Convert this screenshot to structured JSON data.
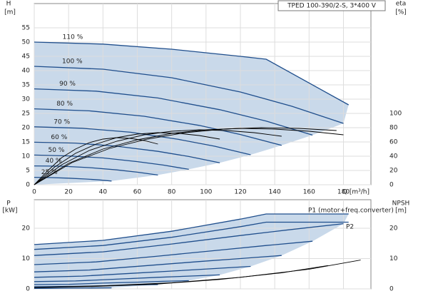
{
  "chart_data": [
    {
      "type": "line",
      "title": "TPED 100-390/2-S, 3*400 V",
      "ylabel": "H",
      "yunit": "[m]",
      "y2label": "eta",
      "y2unit": "[%]",
      "xlabel": "Q [m³/h]",
      "xlim": [
        0,
        196
      ],
      "xticks": [
        0,
        20,
        40,
        60,
        80,
        100,
        120,
        140,
        160,
        180
      ],
      "ylim": [
        0,
        63.5
      ],
      "yticks": [
        0,
        5,
        10,
        15,
        20,
        25,
        30,
        35,
        40,
        45,
        50,
        55
      ],
      "y2lim": [
        0,
        254
      ],
      "y2ticks": [
        0,
        20,
        40,
        60,
        80,
        100
      ],
      "grid": true,
      "series": [
        {
          "name": "110 %",
          "color": "#1f4e8c",
          "fill": "#c9d9ea",
          "x": [
            0,
            40,
            80,
            120,
            135,
            183
          ],
          "values": [
            50,
            49.3,
            47.5,
            45,
            44,
            28
          ]
        },
        {
          "name": "100 %",
          "color": "#1f4e8c",
          "fill": "#c9d9ea",
          "x": [
            0,
            40,
            80,
            120,
            150,
            180
          ],
          "values": [
            41.5,
            40.5,
            37.5,
            32.5,
            27.5,
            21.5
          ]
        },
        {
          "name": "90 %",
          "color": "#1f4e8c",
          "fill": "#c9d9ea",
          "x": [
            0,
            36,
            72,
            108,
            135,
            162
          ],
          "values": [
            33.6,
            32.8,
            30.4,
            26.3,
            22.3,
            17.4
          ]
        },
        {
          "name": "80 %",
          "color": "#1f4e8c",
          "fill": "#c9d9ea",
          "x": [
            0,
            32,
            64,
            96,
            120,
            144
          ],
          "values": [
            26.6,
            25.9,
            24,
            20.8,
            17.6,
            13.8
          ]
        },
        {
          "name": "70 %",
          "color": "#1f4e8c",
          "fill": "#c9d9ea",
          "x": [
            0,
            28,
            56,
            84,
            105,
            126
          ],
          "values": [
            20.3,
            19.8,
            18.4,
            15.9,
            13.5,
            10.5
          ]
        },
        {
          "name": "60 %",
          "color": "#1f4e8c",
          "fill": "#c9d9ea",
          "x": [
            0,
            24,
            48,
            72,
            90,
            108
          ],
          "values": [
            14.9,
            14.6,
            13.5,
            11.7,
            9.9,
            7.7
          ]
        },
        {
          "name": "50 %",
          "color": "#1f4e8c",
          "fill": "#c9d9ea",
          "x": [
            0,
            20,
            40,
            60,
            75,
            90
          ],
          "values": [
            10.4,
            10.1,
            9.4,
            8.1,
            6.9,
            5.4
          ]
        },
        {
          "name": "40 %",
          "color": "#1f4e8c",
          "fill": "#c9d9ea",
          "x": [
            0,
            16,
            32,
            48,
            60,
            72
          ],
          "values": [
            6.6,
            6.5,
            6,
            5.2,
            4.4,
            3.4
          ]
        },
        {
          "name": "25 %",
          "color": "#1f4e8c",
          "fill": "#c9d9ea",
          "x": [
            0,
            10,
            20,
            30,
            37.5,
            45
          ],
          "values": [
            2.6,
            2.5,
            2.3,
            2,
            1.7,
            1.3
          ]
        },
        {
          "axis": "y2",
          "color": "#000000",
          "x": [
            0,
            22,
            44,
            66,
            88,
            110,
            132,
            154,
            176
          ],
          "values": [
            0,
            31,
            51,
            64,
            73,
            78,
            80,
            79,
            76
          ]
        },
        {
          "axis": "y2",
          "color": "#000000",
          "x": [
            0,
            20,
            40,
            60,
            80,
            100,
            120,
            140,
            160,
            180
          ],
          "values": [
            0,
            30,
            50,
            63,
            72,
            77,
            79,
            78,
            75,
            70
          ]
        },
        {
          "axis": "y2",
          "color": "#000000",
          "x": [
            0,
            16,
            32,
            48,
            64,
            80,
            96,
            112,
            128,
            144
          ],
          "values": [
            0,
            28,
            48,
            61,
            70,
            75,
            77,
            76,
            73,
            68
          ]
        },
        {
          "axis": "y2",
          "color": "#000000",
          "x": [
            0,
            12,
            24,
            36,
            48,
            60,
            72,
            84,
            96,
            108
          ],
          "values": [
            0,
            25,
            44,
            57,
            66,
            71,
            73,
            72,
            69,
            64
          ]
        },
        {
          "axis": "y2",
          "color": "#000000",
          "x": [
            0,
            8,
            16,
            24,
            32,
            40,
            48,
            56,
            64,
            72
          ],
          "values": [
            0,
            20,
            38,
            50,
            59,
            64,
            66,
            65,
            62,
            57
          ]
        }
      ]
    },
    {
      "type": "line",
      "ylabel": "P",
      "yunit": "[kW]",
      "y2label": "NPSH",
      "y2unit": "[m]",
      "annotations": [
        "P1 (motor+freq.converter)",
        "P2"
      ],
      "xlim": [
        0,
        196
      ],
      "xticks": [
        0,
        20,
        40,
        60,
        80,
        100,
        120,
        140,
        160,
        180
      ],
      "ylim": [
        0,
        29.4
      ],
      "yticks": [
        0,
        10,
        20
      ],
      "y2lim": [
        0,
        29.4
      ],
      "y2ticks": [
        0,
        10,
        20
      ],
      "grid": true,
      "series": [
        {
          "color": "#1f4e8c",
          "fill": "#c9d9ea",
          "x": [
            0,
            40,
            80,
            120,
            135,
            183
          ],
          "values": [
            14.6,
            16,
            19,
            23,
            24.7,
            24.7
          ]
        },
        {
          "color": "#1f4e8c",
          "fill": "#c9d9ea",
          "x": [
            0,
            40,
            80,
            120,
            150,
            180
          ],
          "values": [
            11,
            12.2,
            14.8,
            17.6,
            19.6,
            21.5
          ]
        },
        {
          "color": "#1f4e8c",
          "fill": "#c9d9ea",
          "x": [
            0,
            36,
            72,
            108,
            135,
            162
          ],
          "values": [
            8,
            8.9,
            10.8,
            12.8,
            14.3,
            15.7
          ]
        },
        {
          "color": "#1f4e8c",
          "fill": "#c9d9ea",
          "x": [
            0,
            32,
            64,
            96,
            120,
            144
          ],
          "values": [
            5.6,
            6.2,
            7.6,
            9,
            10,
            11
          ]
        },
        {
          "color": "#1f4e8c",
          "fill": "#c9d9ea",
          "x": [
            0,
            28,
            56,
            84,
            105,
            126
          ],
          "values": [
            3.8,
            4.2,
            5.1,
            6,
            6.7,
            7.4
          ]
        },
        {
          "color": "#1f4e8c",
          "fill": "#c9d9ea",
          "x": [
            0,
            24,
            48,
            72,
            90,
            108
          ],
          "values": [
            2.4,
            2.6,
            3.2,
            3.8,
            4.2,
            4.6
          ]
        },
        {
          "color": "#1f4e8c",
          "fill": "#c9d9ea",
          "x": [
            0,
            20,
            40,
            60,
            75,
            90
          ],
          "values": [
            1.4,
            1.5,
            1.9,
            2.2,
            2.5,
            2.7
          ]
        },
        {
          "color": "#1f4e8c",
          "fill": "#c9d9ea",
          "x": [
            0,
            16,
            32,
            48,
            60,
            72
          ],
          "values": [
            0.7,
            0.8,
            0.9,
            1.1,
            1.3,
            1.4
          ]
        },
        {
          "color": "#1f4e8c",
          "fill": "#c9d9ea",
          "x": [
            0,
            10,
            20,
            30,
            37.5,
            45
          ],
          "values": [
            0.17,
            0.19,
            0.23,
            0.27,
            0.31,
            0.34
          ]
        },
        {
          "color": "#1f4e8c",
          "x": [
            0,
            40,
            80,
            120,
            135,
            183
          ],
          "values": [
            13,
            14.3,
            17,
            20.5,
            22,
            22
          ]
        },
        {
          "axis": "y2",
          "color": "#000000",
          "x": [
            0,
            40,
            80,
            120,
            160,
            190
          ],
          "values": [
            0.5,
            1,
            2,
            3.8,
            6.5,
            9.5
          ]
        },
        {
          "axis": "y2",
          "color": "#000000",
          "x": [
            0,
            36,
            72,
            108,
            144,
            171
          ],
          "values": [
            0.4,
            0.8,
            1.6,
            3.1,
            5.3,
            7.7
          ]
        }
      ]
    }
  ]
}
